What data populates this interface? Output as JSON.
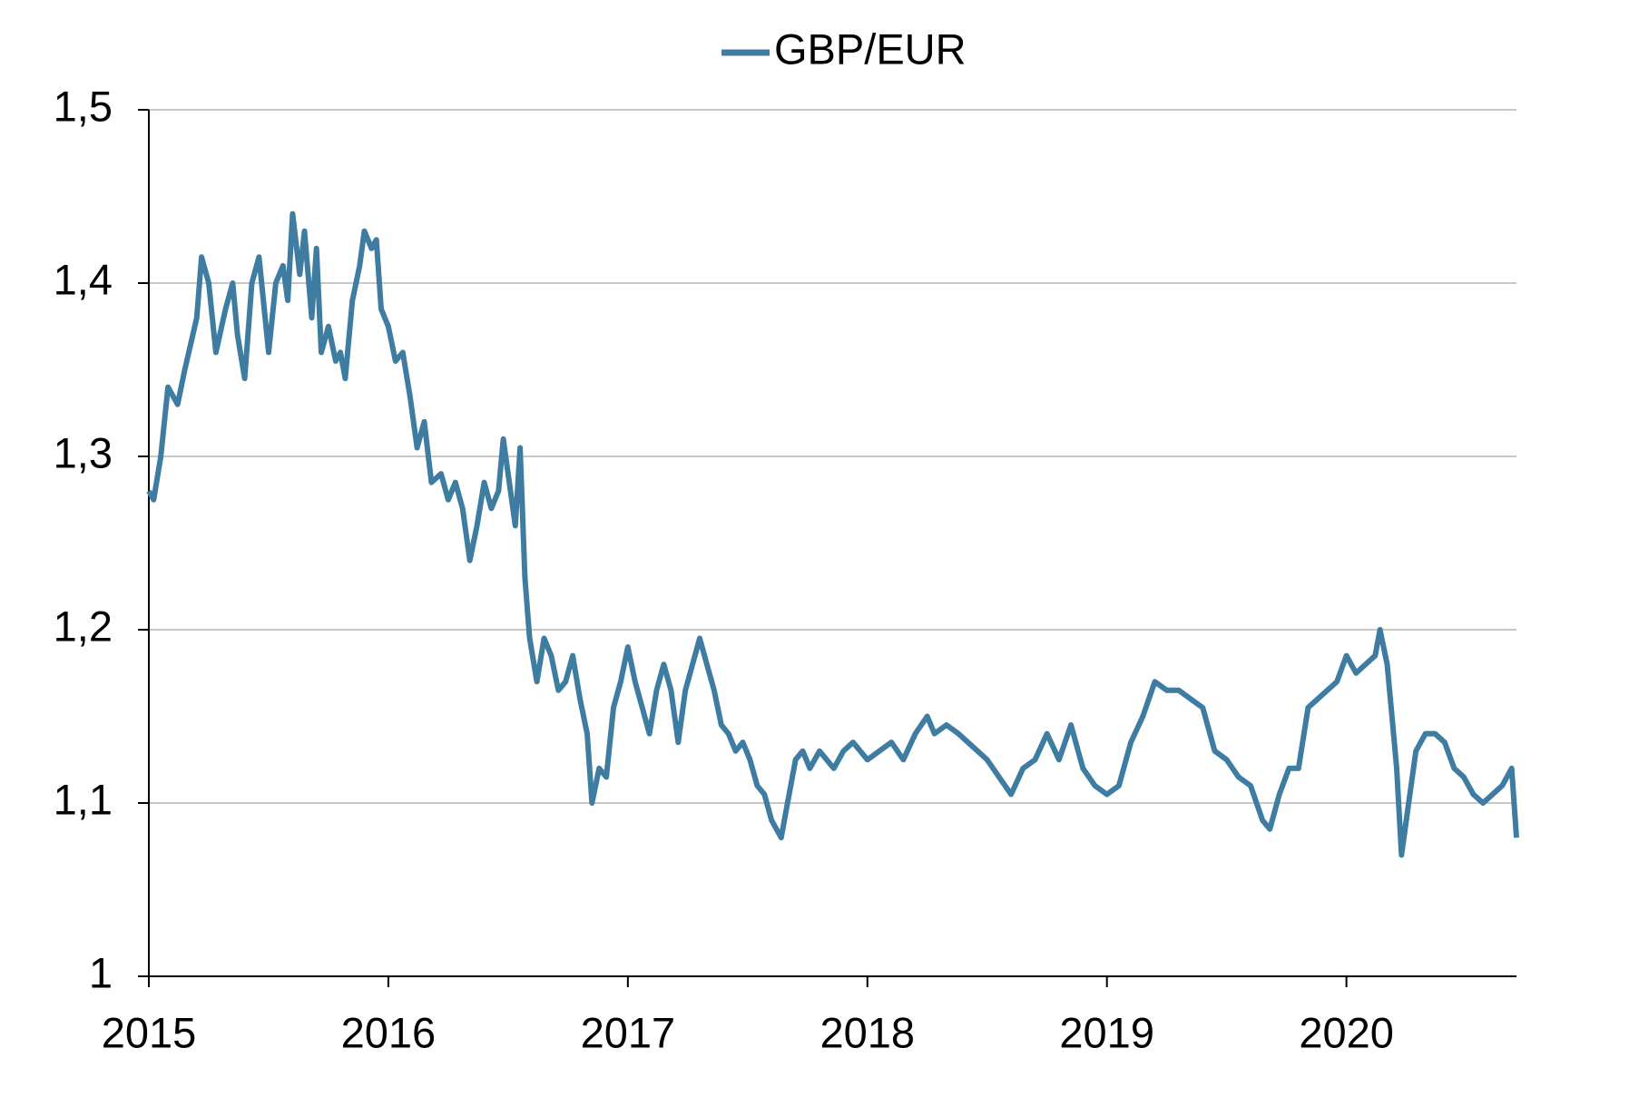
{
  "chart_data": {
    "type": "line",
    "series": [
      {
        "name": "GBP/EUR",
        "color": "#3f7ca1",
        "x": [
          2015.0,
          2015.02,
          2015.05,
          2015.08,
          2015.12,
          2015.15,
          2015.2,
          2015.22,
          2015.25,
          2015.28,
          2015.32,
          2015.35,
          2015.37,
          2015.4,
          2015.43,
          2015.46,
          2015.5,
          2015.53,
          2015.56,
          2015.58,
          2015.6,
          2015.63,
          2015.65,
          2015.68,
          2015.7,
          2015.72,
          2015.75,
          2015.78,
          2015.8,
          2015.82,
          2015.85,
          2015.88,
          2015.9,
          2015.93,
          2015.95,
          2015.97,
          2016.0,
          2016.03,
          2016.06,
          2016.09,
          2016.12,
          2016.15,
          2016.18,
          2016.22,
          2016.25,
          2016.28,
          2016.31,
          2016.34,
          2016.37,
          2016.4,
          2016.43,
          2016.46,
          2016.48,
          2016.51,
          2016.53,
          2016.55,
          2016.57,
          2016.59,
          2016.62,
          2016.65,
          2016.68,
          2016.71,
          2016.74,
          2016.77,
          2016.8,
          2016.83,
          2016.85,
          2016.88,
          2016.91,
          2016.94,
          2016.97,
          2017.0,
          2017.03,
          2017.06,
          2017.09,
          2017.12,
          2017.15,
          2017.18,
          2017.21,
          2017.24,
          2017.27,
          2017.3,
          2017.33,
          2017.36,
          2017.39,
          2017.42,
          2017.45,
          2017.48,
          2017.51,
          2017.54,
          2017.57,
          2017.6,
          2017.64,
          2017.66,
          2017.7,
          2017.73,
          2017.76,
          2017.8,
          2017.83,
          2017.86,
          2017.9,
          2017.94,
          2017.97,
          2018.0,
          2018.05,
          2018.1,
          2018.15,
          2018.2,
          2018.25,
          2018.28,
          2018.33,
          2018.38,
          2018.42,
          2018.46,
          2018.5,
          2018.55,
          2018.6,
          2018.65,
          2018.7,
          2018.75,
          2018.8,
          2018.85,
          2018.9,
          2018.95,
          2019.0,
          2019.05,
          2019.1,
          2019.15,
          2019.2,
          2019.25,
          2019.3,
          2019.35,
          2019.4,
          2019.45,
          2019.5,
          2019.55,
          2019.6,
          2019.65,
          2019.68,
          2019.72,
          2019.76,
          2019.8,
          2019.84,
          2019.88,
          2019.92,
          2019.96,
          2020.0,
          2020.04,
          2020.08,
          2020.12,
          2020.14,
          2020.17,
          2020.19,
          2020.21,
          2020.23,
          2020.26,
          2020.29,
          2020.33,
          2020.37,
          2020.41,
          2020.45,
          2020.49,
          2020.53,
          2020.57,
          2020.61,
          2020.65,
          2020.69,
          2020.71
        ],
        "values": [
          1.28,
          1.275,
          1.3,
          1.34,
          1.33,
          1.35,
          1.38,
          1.415,
          1.4,
          1.36,
          1.385,
          1.4,
          1.37,
          1.345,
          1.4,
          1.415,
          1.36,
          1.4,
          1.41,
          1.39,
          1.44,
          1.405,
          1.43,
          1.38,
          1.42,
          1.36,
          1.375,
          1.355,
          1.36,
          1.345,
          1.39,
          1.41,
          1.43,
          1.42,
          1.425,
          1.385,
          1.375,
          1.355,
          1.36,
          1.335,
          1.305,
          1.32,
          1.285,
          1.29,
          1.275,
          1.285,
          1.27,
          1.24,
          1.26,
          1.285,
          1.27,
          1.28,
          1.31,
          1.28,
          1.26,
          1.305,
          1.23,
          1.195,
          1.17,
          1.195,
          1.185,
          1.165,
          1.17,
          1.185,
          1.16,
          1.14,
          1.1,
          1.12,
          1.115,
          1.155,
          1.17,
          1.19,
          1.17,
          1.155,
          1.14,
          1.165,
          1.18,
          1.165,
          1.135,
          1.165,
          1.18,
          1.195,
          1.18,
          1.165,
          1.145,
          1.14,
          1.13,
          1.135,
          1.125,
          1.11,
          1.105,
          1.09,
          1.08,
          1.095,
          1.125,
          1.13,
          1.12,
          1.13,
          1.125,
          1.12,
          1.13,
          1.135,
          1.13,
          1.125,
          1.13,
          1.135,
          1.125,
          1.14,
          1.15,
          1.14,
          1.145,
          1.14,
          1.135,
          1.13,
          1.125,
          1.115,
          1.105,
          1.12,
          1.125,
          1.14,
          1.125,
          1.145,
          1.12,
          1.11,
          1.105,
          1.11,
          1.135,
          1.15,
          1.17,
          1.165,
          1.165,
          1.16,
          1.155,
          1.13,
          1.125,
          1.115,
          1.11,
          1.09,
          1.085,
          1.105,
          1.12,
          1.12,
          1.155,
          1.16,
          1.165,
          1.17,
          1.185,
          1.175,
          1.18,
          1.185,
          1.2,
          1.18,
          1.15,
          1.12,
          1.07,
          1.1,
          1.13,
          1.14,
          1.14,
          1.135,
          1.12,
          1.115,
          1.105,
          1.1,
          1.105,
          1.11,
          1.12,
          1.08
        ]
      }
    ],
    "xlim": [
      2015,
      2020.71
    ],
    "xticks": [
      2015,
      2016,
      2017,
      2018,
      2019,
      2020
    ],
    "ylim": [
      1,
      1.5
    ],
    "yticks": [
      1,
      {
        "value": 1.1,
        "label": "1,1"
      },
      {
        "value": 1.2,
        "label": "1,2"
      },
      {
        "value": 1.3,
        "label": "1,3"
      },
      {
        "value": 1.4,
        "label": "1,4"
      },
      {
        "value": 1.5,
        "label": "1,5"
      }
    ],
    "grid": true,
    "legend": "top"
  }
}
